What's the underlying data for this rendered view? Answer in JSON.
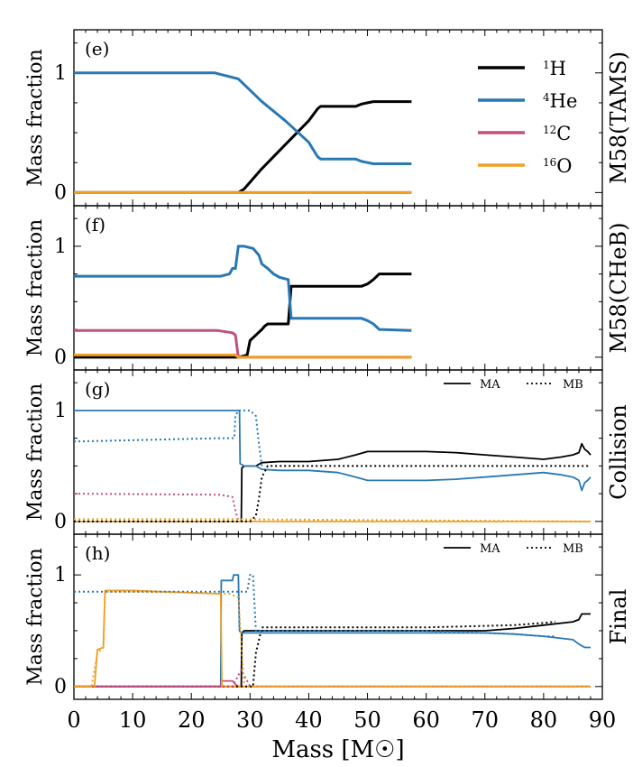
{
  "colors": {
    "H": "#000000",
    "He": "#2878b5",
    "C": "#c2507f",
    "O": "#f0a020"
  },
  "legend_species": [
    {
      "sup": "1",
      "el": "H",
      "color": "#000000"
    },
    {
      "sup": "4",
      "el": "He",
      "color": "#2878b5"
    },
    {
      "sup": "12",
      "el": "C",
      "color": "#c2507f"
    },
    {
      "sup": "16",
      "el": "O",
      "color": "#f0a020"
    }
  ],
  "chart_data": [
    {
      "type": "line",
      "panel": "(e)",
      "right_label": "M58(TAMS)",
      "ylabel": "Mass fraction",
      "xlabel": "Mass [M☉]",
      "xlim": [
        0,
        90
      ],
      "ylim": [
        -0.05,
        1.3
      ],
      "yticks": [
        0,
        1
      ],
      "xticks": [
        0,
        10,
        20,
        30,
        40,
        50,
        60,
        70,
        80,
        90
      ],
      "legend_position": "top-right",
      "series": [
        {
          "name": "¹H",
          "color": "#000000",
          "style": "solid",
          "x": [
            0,
            28,
            29,
            32,
            36,
            40,
            41.5,
            42,
            48,
            49,
            50,
            51,
            57.5
          ],
          "y": [
            0,
            0,
            0.03,
            0.2,
            0.4,
            0.6,
            0.7,
            0.72,
            0.72,
            0.74,
            0.75,
            0.76,
            0.76
          ]
        },
        {
          "name": "⁴He",
          "color": "#2878b5",
          "style": "solid",
          "x": [
            0,
            24,
            28,
            32,
            36,
            40,
            41.5,
            42,
            48,
            49,
            50,
            51,
            57.5
          ],
          "y": [
            1,
            1,
            0.95,
            0.76,
            0.6,
            0.42,
            0.3,
            0.28,
            0.28,
            0.26,
            0.25,
            0.24,
            0.24
          ]
        },
        {
          "name": "¹²C",
          "color": "#c2507f",
          "style": "solid",
          "x": [
            0,
            57.5
          ],
          "y": [
            0,
            0
          ]
        },
        {
          "name": "¹⁶O",
          "color": "#f0a020",
          "style": "solid",
          "x": [
            0,
            57.5
          ],
          "y": [
            0,
            0
          ]
        }
      ]
    },
    {
      "type": "line",
      "panel": "(f)",
      "right_label": "M58(CHeB)",
      "ylabel": "Mass fraction",
      "xlim": [
        0,
        90
      ],
      "ylim": [
        -0.05,
        1.3
      ],
      "yticks": [
        0,
        1
      ],
      "series": [
        {
          "name": "¹H",
          "color": "#000000",
          "style": "solid",
          "x": [
            0,
            28,
            29.5,
            30,
            31,
            32,
            32.5,
            33,
            34,
            35,
            36.5,
            37,
            49,
            50,
            51,
            52,
            57.5
          ],
          "y": [
            0,
            0,
            0.02,
            0.15,
            0.2,
            0.25,
            0.28,
            0.3,
            0.3,
            0.3,
            0.3,
            0.64,
            0.64,
            0.66,
            0.7,
            0.75,
            0.75
          ]
        },
        {
          "name": "⁴He",
          "color": "#2878b5",
          "style": "solid",
          "x": [
            0,
            25,
            26.5,
            27,
            27.5,
            28,
            29,
            30.5,
            31.5,
            32,
            33,
            34,
            35,
            36.5,
            37,
            49,
            50,
            51,
            52,
            57.5
          ],
          "y": [
            0.73,
            0.73,
            0.75,
            0.8,
            0.8,
            1,
            1,
            0.98,
            0.92,
            0.84,
            0.8,
            0.75,
            0.72,
            0.7,
            0.35,
            0.35,
            0.33,
            0.3,
            0.25,
            0.24
          ]
        },
        {
          "name": "¹²C",
          "color": "#c2507f",
          "style": "solid",
          "x": [
            0,
            24.5,
            27,
            27.5,
            28,
            57.5
          ],
          "y": [
            0.24,
            0.24,
            0.22,
            0.2,
            0,
            0
          ]
        },
        {
          "name": "¹⁶O",
          "color": "#f0a020",
          "style": "solid",
          "x": [
            0,
            24.5,
            27.5,
            28,
            57.5
          ],
          "y": [
            0.02,
            0.02,
            0.02,
            0,
            0
          ]
        }
      ]
    },
    {
      "type": "line",
      "panel": "(g)",
      "right_label": "Collision",
      "ylabel": "Mass fraction",
      "xlim": [
        0,
        90
      ],
      "ylim": [
        -0.05,
        1.3
      ],
      "yticks": [
        0,
        1
      ],
      "legend_lines": [
        {
          "label": "MA",
          "style": "solid"
        },
        {
          "label": "MB",
          "style": "dotted"
        }
      ],
      "series": [
        {
          "name": "MA",
          "color": "#000000",
          "style": "solid",
          "x": [
            0,
            28.5,
            28.6,
            29,
            31,
            32,
            35,
            40,
            45,
            48,
            50,
            55,
            60,
            65,
            70,
            75,
            80,
            83,
            85,
            86,
            86.5,
            87,
            87.5,
            88
          ],
          "y": [
            0,
            0,
            0.48,
            0.5,
            0.5,
            0.53,
            0.54,
            0.54,
            0.56,
            0.6,
            0.63,
            0.63,
            0.63,
            0.62,
            0.6,
            0.58,
            0.56,
            0.58,
            0.6,
            0.62,
            0.7,
            0.65,
            0.63,
            0.6
          ]
        },
        {
          "name": "MA",
          "color": "#2878b5",
          "style": "solid",
          "x": [
            0,
            28.2,
            28.3,
            29,
            31,
            32,
            35,
            40,
            45,
            48,
            50,
            55,
            60,
            65,
            70,
            75,
            80,
            83,
            85,
            86,
            86.5,
            87,
            87.5,
            88
          ],
          "y": [
            1,
            1,
            0.52,
            0.5,
            0.5,
            0.47,
            0.46,
            0.46,
            0.44,
            0.4,
            0.37,
            0.37,
            0.37,
            0.38,
            0.4,
            0.42,
            0.44,
            0.42,
            0.4,
            0.37,
            0.28,
            0.35,
            0.37,
            0.4
          ]
        },
        {
          "name": "MA",
          "color": "#f0a020",
          "style": "solid",
          "x": [
            0,
            88
          ],
          "y": [
            0,
            0
          ]
        },
        {
          "name": "MB",
          "color": "#000000",
          "style": "dotted",
          "x": [
            0,
            30,
            31,
            31.5,
            32,
            33,
            88
          ],
          "y": [
            0,
            0,
            0.05,
            0.2,
            0.4,
            0.5,
            0.5
          ]
        },
        {
          "name": "MB",
          "color": "#2878b5",
          "style": "dotted",
          "x": [
            0,
            25,
            27.3,
            27.5,
            28,
            30,
            31,
            31.5,
            32
          ],
          "y": [
            0.72,
            0.75,
            0.75,
            0.95,
            1,
            1,
            0.95,
            0.7,
            0.5
          ]
        },
        {
          "name": "MB",
          "color": "#c2507f",
          "style": "dotted",
          "x": [
            0,
            25,
            27,
            27.5,
            28
          ],
          "y": [
            0.25,
            0.24,
            0.22,
            0.1,
            0
          ]
        },
        {
          "name": "MB",
          "color": "#f0a020",
          "style": "dotted",
          "x": [
            0,
            27.5,
            88
          ],
          "y": [
            0.02,
            0.02,
            0
          ]
        }
      ]
    },
    {
      "type": "line",
      "panel": "(h)",
      "right_label": "Final",
      "ylabel": "Mass fraction",
      "xlim": [
        0,
        90
      ],
      "ylim": [
        -0.05,
        1.3
      ],
      "yticks": [
        0,
        1
      ],
      "legend_lines": [
        {
          "label": "MA",
          "style": "solid"
        },
        {
          "label": "MB",
          "style": "dotted"
        }
      ],
      "series": [
        {
          "name": "MA",
          "color": "#000000",
          "style": "solid",
          "x": [
            0,
            28.5,
            28.6,
            29,
            40,
            60,
            70,
            75,
            80,
            85,
            86,
            86.5,
            88
          ],
          "y": [
            0,
            0,
            0.48,
            0.5,
            0.5,
            0.5,
            0.5,
            0.52,
            0.55,
            0.58,
            0.6,
            0.65,
            0.65
          ]
        },
        {
          "name": "MA",
          "color": "#2878b5",
          "style": "solid",
          "x": [
            0,
            25,
            25.1,
            27,
            27.2,
            28,
            28.2,
            28.5,
            29,
            40,
            60,
            70,
            75,
            80,
            85,
            86,
            87,
            88
          ],
          "y": [
            0,
            0,
            0.95,
            0.95,
            1,
            1,
            0.5,
            0.48,
            0.48,
            0.48,
            0.48,
            0.48,
            0.47,
            0.45,
            0.42,
            0.38,
            0.35,
            0.35
          ]
        },
        {
          "name": "MA",
          "color": "#c2507f",
          "style": "solid",
          "x": [
            0,
            25,
            25.1,
            27,
            27.5,
            28,
            88
          ],
          "y": [
            0,
            0,
            0.05,
            0.05,
            0.02,
            0,
            0
          ]
        },
        {
          "name": "MA",
          "color": "#f0a020",
          "style": "solid",
          "x": [
            0,
            3.5,
            4,
            5,
            5.3,
            10,
            15,
            20,
            25,
            25.2,
            88
          ],
          "y": [
            0,
            0,
            0.33,
            0.35,
            0.86,
            0.86,
            0.85,
            0.84,
            0.83,
            0,
            0
          ]
        },
        {
          "name": "MB",
          "color": "#000000",
          "style": "dotted",
          "x": [
            0,
            30.5,
            31,
            32,
            60,
            75,
            80,
            82
          ],
          "y": [
            0,
            0,
            0.3,
            0.53,
            0.53,
            0.55,
            0.57,
            0.58
          ]
        },
        {
          "name": "MB",
          "color": "#2878b5",
          "style": "dotted",
          "x": [
            0,
            29.5,
            30,
            30.5,
            31,
            40,
            60,
            75,
            80,
            82
          ],
          "y": [
            0.85,
            0.85,
            1,
            1,
            0.5,
            0.5,
            0.5,
            0.47,
            0.45,
            0.45
          ]
        },
        {
          "name": "MB",
          "color": "#c2507f",
          "style": "dotted",
          "x": [
            0,
            27,
            28.5,
            29.5,
            30,
            88
          ],
          "y": [
            0,
            0,
            0.15,
            0.05,
            0,
            0
          ]
        },
        {
          "name": "MB",
          "color": "#f0a020",
          "style": "dotted",
          "x": [
            0,
            3,
            4,
            5,
            5.3,
            10,
            20,
            26.5,
            27,
            28,
            29,
            88
          ],
          "y": [
            0,
            0,
            0.3,
            0.35,
            0.85,
            0.85,
            0.84,
            0.83,
            0.82,
            0.8,
            0,
            0
          ]
        }
      ]
    }
  ]
}
